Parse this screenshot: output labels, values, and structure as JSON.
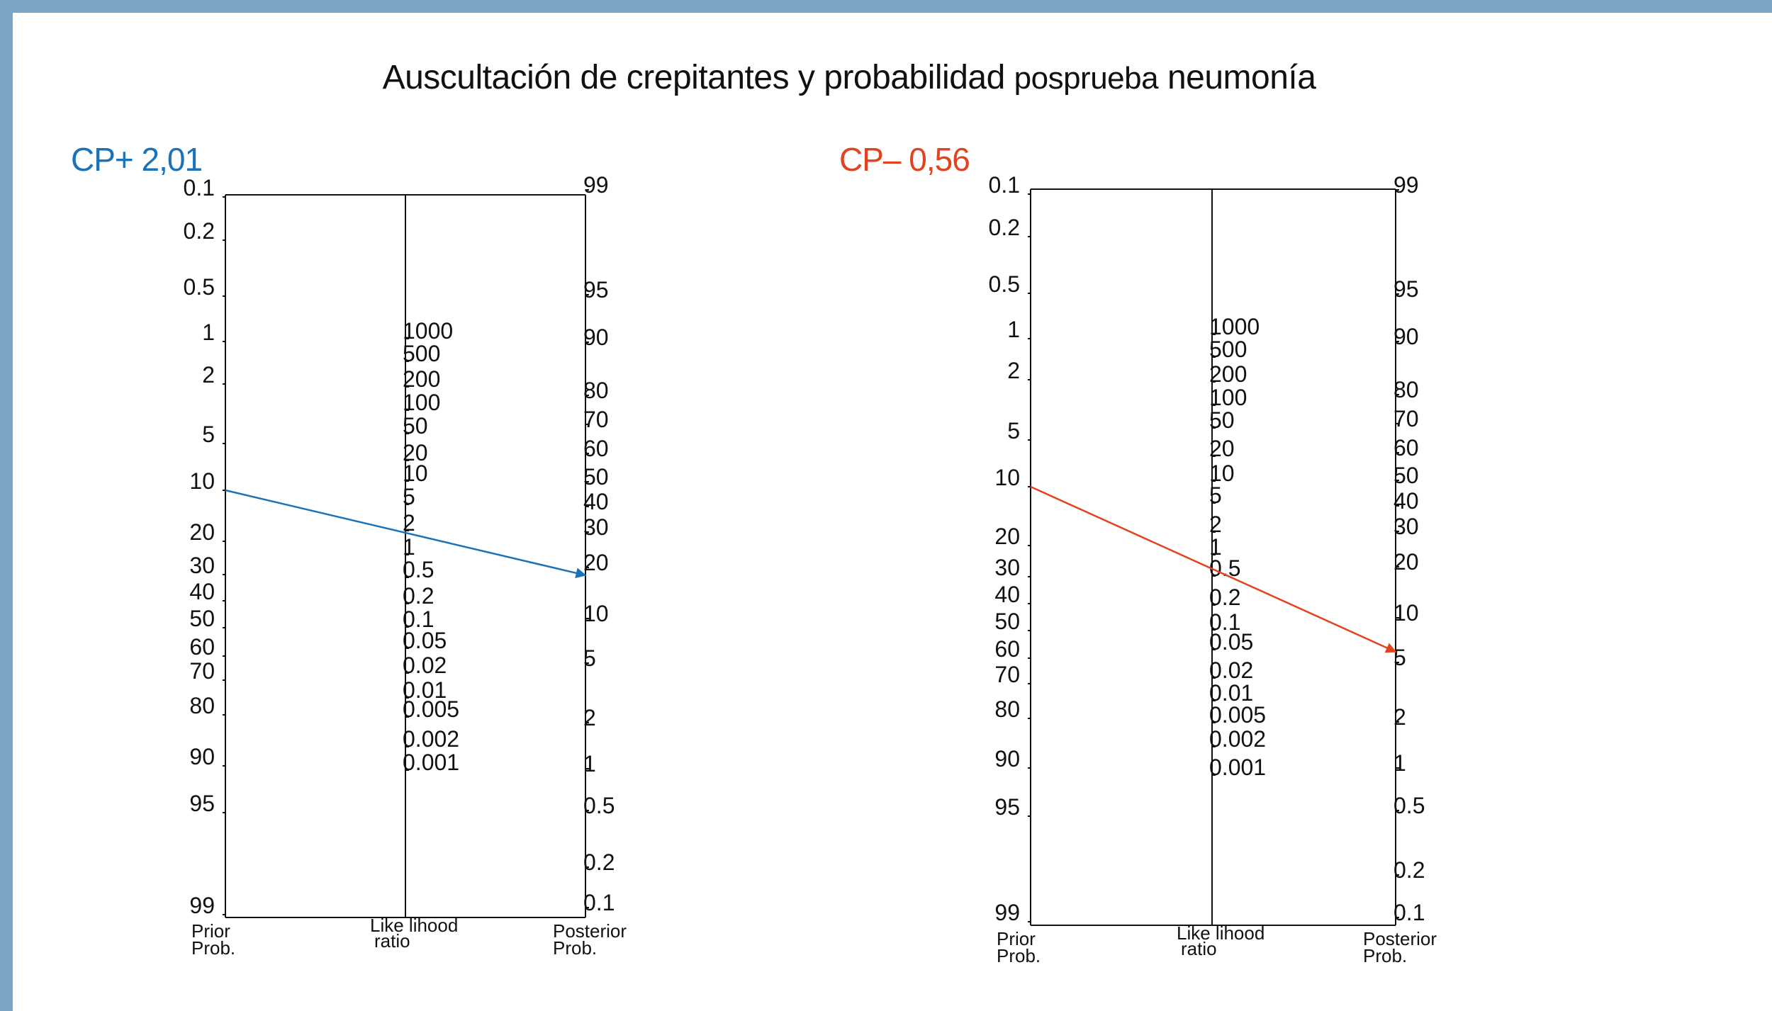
{
  "title": {
    "main": "Auscultación de crepitantes y probabilidad",
    "sub": "posprueba",
    "tail": "neumonía"
  },
  "colors": {
    "frame": "#7ba3c4",
    "positive": "#1a72b8",
    "negative": "#e2431f"
  },
  "nomogram_scales": {
    "prior_ticks": [
      "0.1",
      "0.2",
      "0.5",
      "1",
      "2",
      "5",
      "10",
      "20",
      "30",
      "40",
      "50",
      "60",
      "70",
      "80",
      "90",
      "95",
      "99"
    ],
    "lr_ticks": [
      "1000",
      "500",
      "200",
      "100",
      "50",
      "20",
      "10",
      "5",
      "2",
      "1",
      "0.5",
      "0.2",
      "0.1",
      "0.05",
      "0.02",
      "0.01",
      "0.005",
      "0.002",
      "0.001"
    ],
    "posterior_ticks": [
      "99",
      "95",
      "90",
      "80",
      "70",
      "60",
      "50",
      "40",
      "30",
      "20",
      "10",
      "5",
      "2",
      "1",
      "0.5",
      "0.2",
      "0.1"
    ],
    "axis_labels": {
      "prior_1": "Prior",
      "prior_2": "Prob.",
      "lr_1": "Like lihood",
      "lr_2": "ratio",
      "post_1": "Posterior",
      "post_2": "Prob."
    }
  },
  "panels": [
    {
      "label": "CP+ 2,01",
      "color": "#1a72b8",
      "pretest_probability": 10,
      "likelihood_ratio": 2.01,
      "posttest_probability": 18
    },
    {
      "label": "CP– 0,56",
      "color": "#e2431f",
      "pretest_probability": 10,
      "likelihood_ratio": 0.56,
      "posttest_probability": 5.9
    }
  ]
}
